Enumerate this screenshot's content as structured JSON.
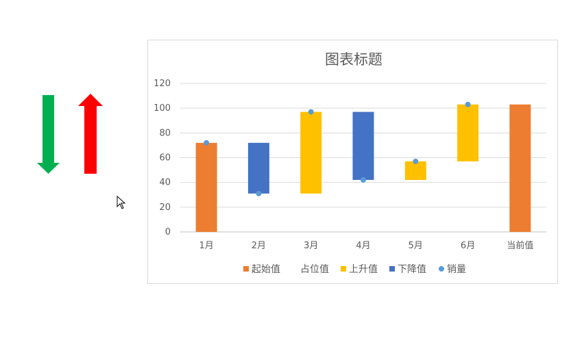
{
  "arrows": [
    {
      "direction": "down",
      "color": "#00b050"
    },
    {
      "direction": "up",
      "color": "#ff0000"
    }
  ],
  "cursor": "mouse-pointer-icon",
  "chart_data": {
    "type": "bar",
    "subtype": "stacked-waterfall",
    "title": "图表标题",
    "categories": [
      "1月",
      "2月",
      "3月",
      "4月",
      "5月",
      "6月",
      "当前值"
    ],
    "ylim": [
      0,
      120
    ],
    "yticks": [
      0,
      20,
      40,
      60,
      80,
      100,
      120
    ],
    "grid": true,
    "legend_position": "bottom",
    "series": [
      {
        "name": "起始值",
        "kind": "bar",
        "color": "#ed7d31",
        "values": [
          72,
          0,
          0,
          0,
          0,
          0,
          103
        ]
      },
      {
        "name": "占位值",
        "kind": "bar",
        "color": "none",
        "values": [
          0,
          31,
          31,
          42,
          42,
          57,
          0
        ]
      },
      {
        "name": "上升值",
        "kind": "bar",
        "color": "#ffc000",
        "values": [
          0,
          0,
          66,
          0,
          15,
          46,
          0
        ]
      },
      {
        "name": "下降值",
        "kind": "bar",
        "color": "#4472c4",
        "values": [
          0,
          41,
          0,
          55,
          0,
          0,
          0
        ]
      },
      {
        "name": "销量",
        "kind": "scatter",
        "color": "#5b9bd5",
        "values": [
          72,
          31,
          97,
          42,
          57,
          103,
          null
        ]
      }
    ]
  }
}
